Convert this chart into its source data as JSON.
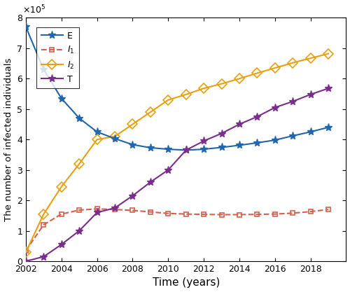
{
  "title": "",
  "xlabel": "Time (years)",
  "ylabel": "The number of infected individuals",
  "xlim": [
    2002,
    2020
  ],
  "ylim": [
    0,
    800000
  ],
  "yticks": [
    0,
    100000,
    200000,
    300000,
    400000,
    500000,
    600000,
    700000,
    800000
  ],
  "xticks": [
    2002,
    2004,
    2006,
    2008,
    2010,
    2012,
    2014,
    2016,
    2018
  ],
  "years": [
    2002,
    2003,
    2004,
    2005,
    2006,
    2007,
    2008,
    2009,
    2010,
    2011,
    2012,
    2013,
    2014,
    2015,
    2016,
    2017,
    2018,
    2019
  ],
  "E": [
    770000,
    630000,
    535000,
    470000,
    425000,
    403000,
    383000,
    373000,
    368000,
    365000,
    368000,
    374000,
    381000,
    389000,
    398000,
    412000,
    425000,
    440000
  ],
  "I1": [
    35000,
    120000,
    155000,
    168000,
    172000,
    170000,
    167000,
    162000,
    157000,
    155000,
    154000,
    153000,
    153000,
    154000,
    155000,
    158000,
    163000,
    170000
  ],
  "I2": [
    30000,
    155000,
    245000,
    320000,
    400000,
    410000,
    450000,
    490000,
    530000,
    548000,
    568000,
    583000,
    600000,
    618000,
    635000,
    652000,
    667000,
    682000
  ],
  "T": [
    0,
    15000,
    55000,
    100000,
    160000,
    175000,
    215000,
    260000,
    300000,
    365000,
    395000,
    420000,
    450000,
    475000,
    505000,
    525000,
    548000,
    568000
  ],
  "E_color": "#2166ac",
  "I1_color": "#d6604d",
  "I2_color": "#e8a010",
  "T_color": "#7b2d8b",
  "linewidth": 1.5
}
